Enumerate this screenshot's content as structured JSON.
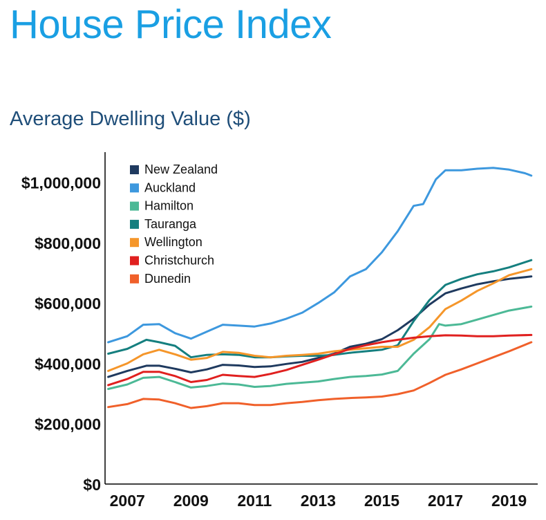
{
  "page": {
    "title": "House Price Index",
    "subtitle": "Average Dwelling Value ($)"
  },
  "chart_data": {
    "type": "line",
    "xlim": [
      2006.3,
      2019.9
    ],
    "ylim": [
      0,
      1100000
    ],
    "x_ticks": [
      2007,
      2009,
      2011,
      2013,
      2015,
      2017,
      2019
    ],
    "y_ticks": [
      {
        "value": 0,
        "label": "$0"
      },
      {
        "value": 200000,
        "label": "$200,000"
      },
      {
        "value": 400000,
        "label": "$400,000"
      },
      {
        "value": 600000,
        "label": "$600,000"
      },
      {
        "value": 800000,
        "label": "$800,000"
      },
      {
        "value": 1000000,
        "label": "$1,000,000"
      }
    ],
    "grid": false,
    "legend_position": "top-left",
    "series": [
      {
        "name": "New Zealand",
        "color": "#1f3a5f",
        "points": [
          [
            2006.4,
            355000
          ],
          [
            2007.0,
            375000
          ],
          [
            2007.6,
            392000
          ],
          [
            2008.0,
            392000
          ],
          [
            2008.5,
            382000
          ],
          [
            2009.0,
            370000
          ],
          [
            2009.5,
            380000
          ],
          [
            2010.0,
            395000
          ],
          [
            2010.5,
            393000
          ],
          [
            2011.0,
            388000
          ],
          [
            2011.5,
            390000
          ],
          [
            2012.0,
            398000
          ],
          [
            2012.5,
            405000
          ],
          [
            2013.0,
            418000
          ],
          [
            2013.5,
            432000
          ],
          [
            2014.0,
            455000
          ],
          [
            2014.5,
            465000
          ],
          [
            2015.0,
            480000
          ],
          [
            2015.5,
            510000
          ],
          [
            2016.0,
            548000
          ],
          [
            2016.5,
            595000
          ],
          [
            2017.0,
            632000
          ],
          [
            2017.5,
            648000
          ],
          [
            2018.0,
            662000
          ],
          [
            2018.5,
            672000
          ],
          [
            2019.0,
            680000
          ],
          [
            2019.7,
            688000
          ]
        ]
      },
      {
        "name": "Auckland",
        "color": "#3d98de",
        "points": [
          [
            2006.4,
            470000
          ],
          [
            2007.0,
            490000
          ],
          [
            2007.5,
            528000
          ],
          [
            2008.0,
            530000
          ],
          [
            2008.5,
            500000
          ],
          [
            2009.0,
            482000
          ],
          [
            2009.5,
            505000
          ],
          [
            2010.0,
            528000
          ],
          [
            2010.5,
            525000
          ],
          [
            2011.0,
            522000
          ],
          [
            2011.5,
            532000
          ],
          [
            2012.0,
            548000
          ],
          [
            2012.5,
            568000
          ],
          [
            2013.0,
            600000
          ],
          [
            2013.5,
            635000
          ],
          [
            2014.0,
            688000
          ],
          [
            2014.5,
            712000
          ],
          [
            2015.0,
            768000
          ],
          [
            2015.5,
            838000
          ],
          [
            2016.0,
            922000
          ],
          [
            2016.3,
            928000
          ],
          [
            2016.7,
            1010000
          ],
          [
            2017.0,
            1040000
          ],
          [
            2017.5,
            1040000
          ],
          [
            2018.0,
            1045000
          ],
          [
            2018.5,
            1048000
          ],
          [
            2019.0,
            1042000
          ],
          [
            2019.5,
            1030000
          ],
          [
            2019.7,
            1022000
          ]
        ]
      },
      {
        "name": "Hamilton",
        "color": "#4cb996",
        "points": [
          [
            2006.4,
            315000
          ],
          [
            2007.0,
            330000
          ],
          [
            2007.5,
            352000
          ],
          [
            2008.0,
            355000
          ],
          [
            2008.5,
            338000
          ],
          [
            2009.0,
            320000
          ],
          [
            2009.5,
            325000
          ],
          [
            2010.0,
            333000
          ],
          [
            2010.5,
            330000
          ],
          [
            2011.0,
            322000
          ],
          [
            2011.5,
            325000
          ],
          [
            2012.0,
            332000
          ],
          [
            2012.5,
            336000
          ],
          [
            2013.0,
            340000
          ],
          [
            2013.5,
            348000
          ],
          [
            2014.0,
            355000
          ],
          [
            2014.5,
            358000
          ],
          [
            2015.0,
            363000
          ],
          [
            2015.5,
            375000
          ],
          [
            2016.0,
            432000
          ],
          [
            2016.5,
            480000
          ],
          [
            2016.8,
            530000
          ],
          [
            2017.0,
            525000
          ],
          [
            2017.5,
            530000
          ],
          [
            2018.0,
            545000
          ],
          [
            2018.5,
            560000
          ],
          [
            2019.0,
            575000
          ],
          [
            2019.7,
            588000
          ]
        ]
      },
      {
        "name": "Tauranga",
        "color": "#157f7f",
        "points": [
          [
            2006.4,
            432000
          ],
          [
            2007.0,
            448000
          ],
          [
            2007.6,
            478000
          ],
          [
            2008.0,
            470000
          ],
          [
            2008.5,
            458000
          ],
          [
            2009.0,
            420000
          ],
          [
            2009.5,
            428000
          ],
          [
            2010.0,
            430000
          ],
          [
            2010.5,
            428000
          ],
          [
            2011.0,
            420000
          ],
          [
            2011.5,
            420000
          ],
          [
            2012.0,
            423000
          ],
          [
            2012.5,
            425000
          ],
          [
            2013.0,
            425000
          ],
          [
            2013.5,
            428000
          ],
          [
            2014.0,
            435000
          ],
          [
            2014.5,
            440000
          ],
          [
            2015.0,
            445000
          ],
          [
            2015.5,
            460000
          ],
          [
            2016.0,
            540000
          ],
          [
            2016.5,
            610000
          ],
          [
            2017.0,
            660000
          ],
          [
            2017.5,
            680000
          ],
          [
            2018.0,
            695000
          ],
          [
            2018.5,
            705000
          ],
          [
            2019.0,
            718000
          ],
          [
            2019.7,
            742000
          ]
        ]
      },
      {
        "name": "Wellington",
        "color": "#f5962a",
        "points": [
          [
            2006.4,
            375000
          ],
          [
            2007.0,
            400000
          ],
          [
            2007.5,
            430000
          ],
          [
            2008.0,
            445000
          ],
          [
            2008.5,
            430000
          ],
          [
            2009.0,
            412000
          ],
          [
            2009.5,
            418000
          ],
          [
            2010.0,
            438000
          ],
          [
            2010.5,
            435000
          ],
          [
            2011.0,
            425000
          ],
          [
            2011.5,
            420000
          ],
          [
            2012.0,
            425000
          ],
          [
            2012.5,
            428000
          ],
          [
            2013.0,
            432000
          ],
          [
            2013.5,
            440000
          ],
          [
            2014.0,
            445000
          ],
          [
            2014.5,
            450000
          ],
          [
            2015.0,
            455000
          ],
          [
            2015.5,
            455000
          ],
          [
            2016.0,
            478000
          ],
          [
            2016.5,
            520000
          ],
          [
            2017.0,
            580000
          ],
          [
            2017.5,
            608000
          ],
          [
            2018.0,
            640000
          ],
          [
            2018.5,
            665000
          ],
          [
            2019.0,
            692000
          ],
          [
            2019.7,
            712000
          ]
        ]
      },
      {
        "name": "Christchurch",
        "color": "#e0201f",
        "points": [
          [
            2006.4,
            328000
          ],
          [
            2007.0,
            348000
          ],
          [
            2007.5,
            372000
          ],
          [
            2008.0,
            372000
          ],
          [
            2008.5,
            358000
          ],
          [
            2009.0,
            338000
          ],
          [
            2009.5,
            345000
          ],
          [
            2010.0,
            362000
          ],
          [
            2010.5,
            358000
          ],
          [
            2011.0,
            355000
          ],
          [
            2011.5,
            365000
          ],
          [
            2012.0,
            378000
          ],
          [
            2012.5,
            395000
          ],
          [
            2013.0,
            412000
          ],
          [
            2013.5,
            430000
          ],
          [
            2014.0,
            448000
          ],
          [
            2014.5,
            460000
          ],
          [
            2015.0,
            470000
          ],
          [
            2015.5,
            478000
          ],
          [
            2016.0,
            485000
          ],
          [
            2016.5,
            490000
          ],
          [
            2017.0,
            493000
          ],
          [
            2017.5,
            492000
          ],
          [
            2018.0,
            490000
          ],
          [
            2018.5,
            490000
          ],
          [
            2019.0,
            492000
          ],
          [
            2019.7,
            494000
          ]
        ]
      },
      {
        "name": "Dunedin",
        "color": "#f0602a",
        "points": [
          [
            2006.4,
            255000
          ],
          [
            2007.0,
            265000
          ],
          [
            2007.5,
            282000
          ],
          [
            2008.0,
            280000
          ],
          [
            2008.5,
            268000
          ],
          [
            2009.0,
            252000
          ],
          [
            2009.5,
            258000
          ],
          [
            2010.0,
            268000
          ],
          [
            2010.5,
            268000
          ],
          [
            2011.0,
            262000
          ],
          [
            2011.5,
            262000
          ],
          [
            2012.0,
            268000
          ],
          [
            2012.5,
            272000
          ],
          [
            2013.0,
            278000
          ],
          [
            2013.5,
            282000
          ],
          [
            2014.0,
            285000
          ],
          [
            2014.5,
            287000
          ],
          [
            2015.0,
            290000
          ],
          [
            2015.5,
            298000
          ],
          [
            2016.0,
            310000
          ],
          [
            2016.5,
            335000
          ],
          [
            2017.0,
            362000
          ],
          [
            2017.5,
            380000
          ],
          [
            2018.0,
            400000
          ],
          [
            2018.5,
            420000
          ],
          [
            2019.0,
            440000
          ],
          [
            2019.7,
            470000
          ]
        ]
      }
    ]
  }
}
